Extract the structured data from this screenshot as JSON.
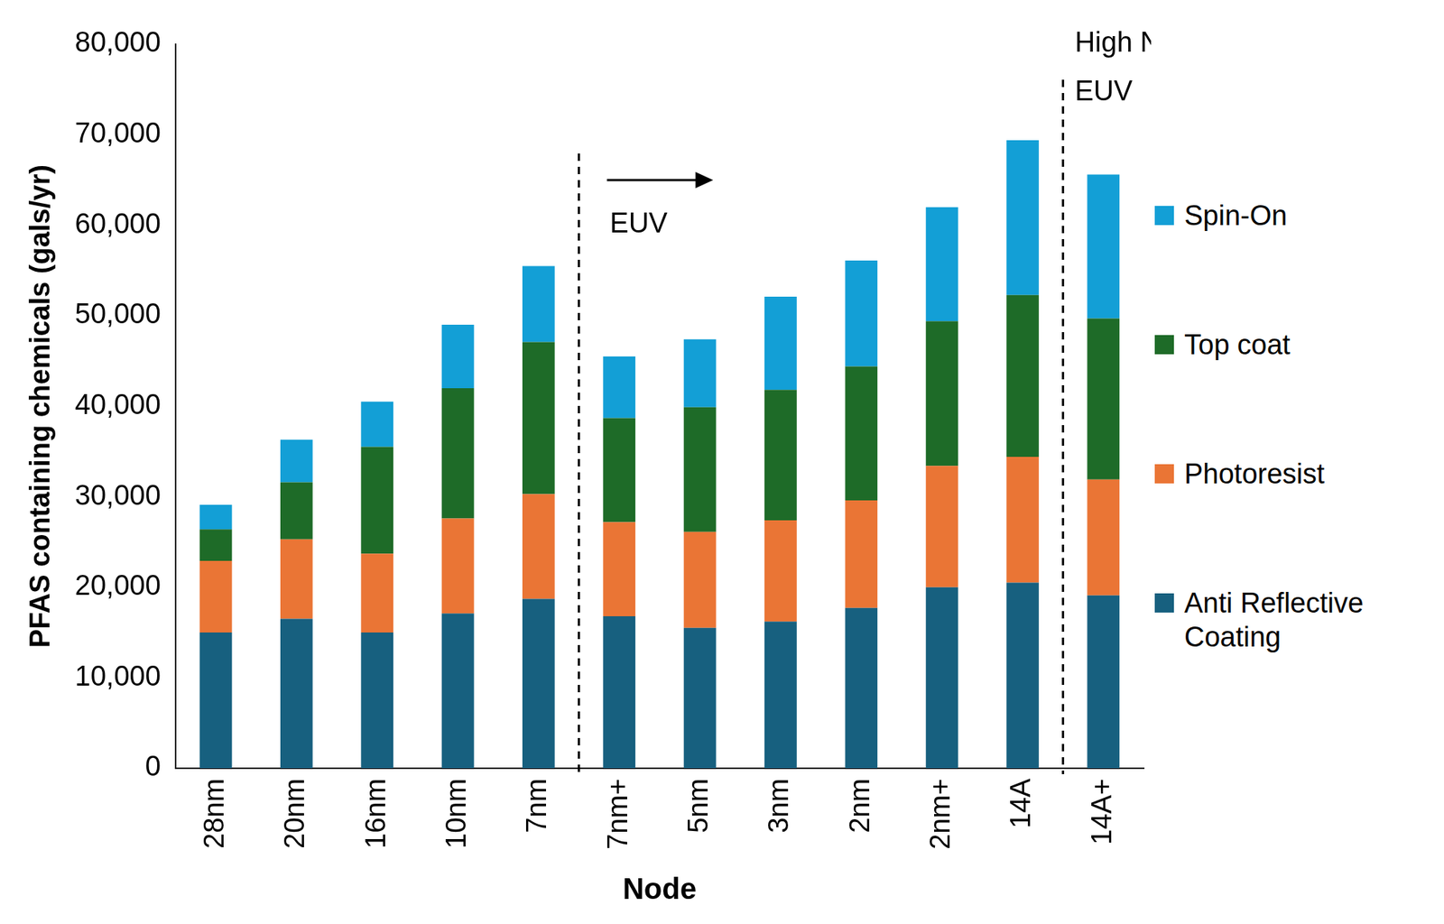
{
  "chart_data": {
    "type": "bar",
    "stacked": true,
    "grid": false,
    "legend": "right",
    "x_label": "Node",
    "y_label": "PFAS containing chemicals (gals/yr)",
    "categories": [
      "28nm",
      "20nm",
      "16nm",
      "10nm",
      "7nm",
      "7nm+",
      "5nm",
      "3nm",
      "2nm",
      "2nm+",
      "14A",
      "14A+"
    ],
    "series": [
      {
        "name": "Anti Reflective Coating",
        "color": "#17607f",
        "values": [
          15000,
          16500,
          15000,
          17100,
          18700,
          16800,
          15500,
          16200,
          17700,
          20000,
          20500,
          19100
        ]
      },
      {
        "name": "Photoresist",
        "color": "#ea7535",
        "values": [
          7900,
          8800,
          8700,
          10500,
          11600,
          10400,
          10600,
          11200,
          11900,
          13400,
          13900,
          12800
        ]
      },
      {
        "name": "Top coat",
        "color": "#1e6b28",
        "values": [
          3500,
          6300,
          11800,
          14400,
          16800,
          11500,
          13800,
          14400,
          14800,
          16000,
          17900,
          17800
        ]
      },
      {
        "name": "Spin-On",
        "color": "#139fd6",
        "values": [
          2700,
          4700,
          5000,
          7000,
          8400,
          6800,
          7500,
          10300,
          11700,
          12600,
          17100,
          15900
        ]
      }
    ],
    "ylim": [
      0,
      80000
    ],
    "yticks": [
      0,
      {
        "value": 10000,
        "label": "10,000"
      },
      {
        "value": 20000,
        "label": "20,000"
      },
      {
        "value": 30000,
        "label": "30,000"
      },
      {
        "value": 40000,
        "label": "40,000"
      },
      {
        "value": 50000,
        "label": "50,000"
      },
      {
        "value": 60000,
        "label": "60,000"
      },
      {
        "value": 70000,
        "label": "70,000"
      },
      {
        "value": 80000,
        "label": "80,000"
      }
    ],
    "annotations": [
      {
        "label": "EUV",
        "start": "7nm+"
      },
      {
        "label": "High NA EUV",
        "start": "14A+"
      }
    ]
  }
}
